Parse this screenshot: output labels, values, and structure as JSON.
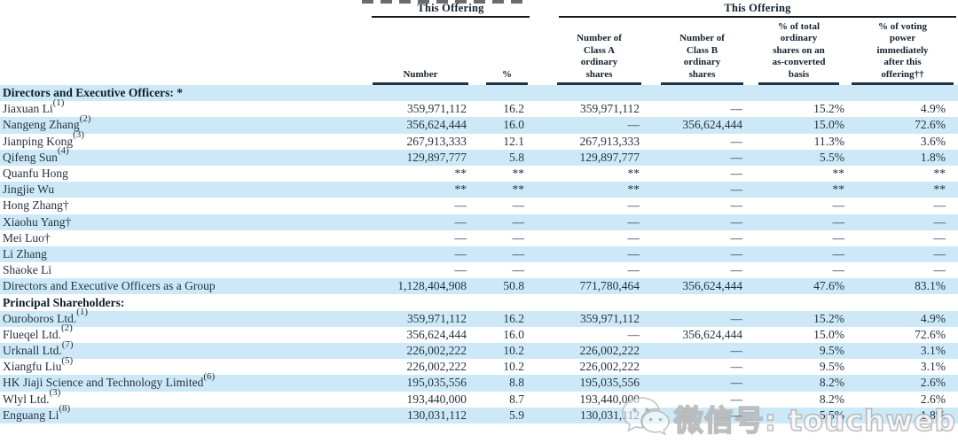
{
  "colors": {
    "row_band": "#cde9f8",
    "header_rule": "#1d3348",
    "text": "#26323e"
  },
  "header": {
    "left_group": {
      "label": "This Offering"
    },
    "right_group": {
      "label": "This Offering"
    },
    "columns": [
      {
        "id": "number",
        "label": "Number"
      },
      {
        "id": "percent",
        "label": "%"
      },
      {
        "id": "class_a",
        "label": "Number of\nClass A\nordinary\nshares"
      },
      {
        "id": "class_b",
        "label": "Number of\nClass B\nordinary\nshares"
      },
      {
        "id": "pct_total",
        "label": "% of total\nordinary\nshares on an\nas-converted\nbasis"
      },
      {
        "id": "voting",
        "label": "% of voting\npower\nimmediately\nafter this\noffering††"
      }
    ]
  },
  "table": {
    "rows": [
      {
        "name": "Directors and Executive Officers: *",
        "bold": true,
        "cells": [
          "",
          "",
          "",
          "",
          "",
          ""
        ]
      },
      {
        "name": "Jiaxuan Li",
        "sup": "(1)",
        "cells": [
          "359,971,112",
          "16.2",
          "359,971,112",
          "—",
          "15.2%",
          "4.9%"
        ]
      },
      {
        "name": "Nangeng Zhang",
        "sup": "(2)",
        "cells": [
          "356,624,444",
          "16.0",
          "—",
          "356,624,444",
          "15.0%",
          "72.6%"
        ]
      },
      {
        "name": "Jianping Kong",
        "sup": "(3)",
        "cells": [
          "267,913,333",
          "12.1",
          "267,913,333",
          "—",
          "11.3%",
          "3.6%"
        ]
      },
      {
        "name": "Qifeng Sun",
        "sup": "(4)",
        "cells": [
          "129,897,777",
          "5.8",
          "129,897,777",
          "—",
          "5.5%",
          "1.8%"
        ]
      },
      {
        "name": "Quanfu Hong",
        "cells": [
          "**",
          "**",
          "**",
          "—",
          "**",
          "**"
        ]
      },
      {
        "name": "Jingjie Wu",
        "cells": [
          "**",
          "**",
          "**",
          "—",
          "**",
          "**"
        ]
      },
      {
        "name": "Hong Zhang†",
        "cells": [
          "—",
          "—",
          "—",
          "—",
          "—",
          "—"
        ]
      },
      {
        "name": "Xiaohu Yang†",
        "cells": [
          "—",
          "—",
          "—",
          "—",
          "—",
          "—"
        ]
      },
      {
        "name": "Mei Luo†",
        "cells": [
          "—",
          "—",
          "—",
          "—",
          "—",
          "—"
        ]
      },
      {
        "name": "Li Zhang",
        "cells": [
          "—",
          "—",
          "—",
          "—",
          "—",
          "—"
        ]
      },
      {
        "name": "Shaoke Li",
        "cells": [
          "—",
          "—",
          "—",
          "—",
          "—",
          "—"
        ]
      },
      {
        "name": "Directors and Executive Officers as a Group",
        "cells": [
          "1,128,404,908",
          "50.8",
          "771,780,464",
          "356,624,444",
          "47.6%",
          "83.1%"
        ]
      },
      {
        "name": "Principal Shareholders:",
        "bold": true,
        "cells": [
          "",
          "",
          "",
          "",
          "",
          ""
        ]
      },
      {
        "name": "Ouroboros Ltd.",
        "sup": "(1)",
        "cells": [
          "359,971,112",
          "16.2",
          "359,971,112",
          "—",
          "15.2%",
          "4.9%"
        ]
      },
      {
        "name": "Flueqel Ltd.",
        "sup": "(2)",
        "cells": [
          "356,624,444",
          "16.0",
          "—",
          "356,624,444",
          "15.0%",
          "72.6%"
        ]
      },
      {
        "name": "Urknall Ltd.",
        "sup": "(7)",
        "cells": [
          "226,002,222",
          "10.2",
          "226,002,222",
          "—",
          "9.5%",
          "3.1%"
        ]
      },
      {
        "name": "Xiangfu Liu",
        "sup": "(5)",
        "cells": [
          "226,002,222",
          "10.2",
          "226,002,222",
          "—",
          "9.5%",
          "3.1%"
        ]
      },
      {
        "name": "HK Jiaji Science and Technology Limited",
        "sup": "(6)",
        "cells": [
          "195,035,556",
          "8.8",
          "195,035,556",
          "—",
          "8.2%",
          "2.6%"
        ]
      },
      {
        "name": "Wlyl Ltd.",
        "sup": "(3)",
        "cells": [
          "193,440,000",
          "8.7",
          "193,440,000",
          "—",
          "8.2%",
          "2.6%"
        ]
      },
      {
        "name": "Enguang Li",
        "sup": "(8)",
        "cells": [
          "130,031,112",
          "5.9",
          "130,031,112",
          "—",
          "5.5%",
          "1.8%"
        ]
      }
    ]
  },
  "watermark": {
    "icon": "wechat-icon",
    "label": "微信号: touchweb"
  }
}
